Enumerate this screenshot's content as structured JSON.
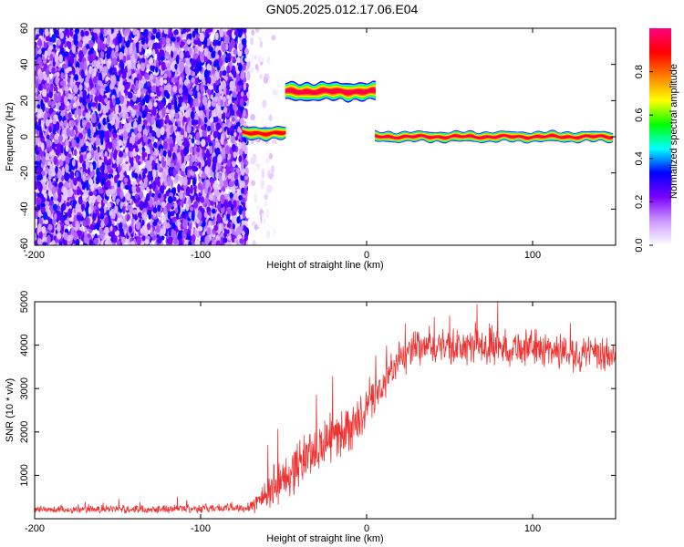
{
  "figure": {
    "title": "GN05.2025.012.17.06.E04"
  },
  "chart_data": [
    {
      "type": "heatmap",
      "xlabel": "Height of straight line (km)",
      "ylabel": "Frequency (Hz)",
      "xlim": [
        -200,
        150
      ],
      "ylim": [
        -60,
        60
      ],
      "xticks": [
        -200,
        -100,
        0,
        100
      ],
      "yticks": [
        -60,
        -40,
        -20,
        0,
        20,
        40,
        60
      ],
      "colorbar": {
        "label": "Normalized spectral amplitude",
        "range": [
          0.0,
          1.0
        ],
        "ticks": [
          0.0,
          0.2,
          0.4,
          0.6,
          0.8
        ],
        "colors": [
          "#ffffff",
          "#cc99ff",
          "#7b00ff",
          "#0000ff",
          "#00ffff",
          "#00ff00",
          "#ffff00",
          "#ff8000",
          "#ff0000",
          "#ff0080"
        ]
      },
      "features": [
        {
          "kind": "noise",
          "x": [
            -200,
            -72
          ],
          "y": [
            -60,
            60
          ],
          "amplitude": [
            0.05,
            0.35
          ]
        },
        {
          "kind": "noise",
          "x": [
            -72,
            -55
          ],
          "y": [
            -60,
            60
          ],
          "amplitude": [
            0.0,
            0.08
          ]
        },
        {
          "kind": "band",
          "x": [
            -75,
            -48
          ],
          "y_center": 2,
          "width": 5,
          "peak": 0.9
        },
        {
          "kind": "band",
          "x": [
            -49,
            6
          ],
          "y_center": 25,
          "width": 7,
          "peak": 0.95
        },
        {
          "kind": "band",
          "x": [
            5,
            150
          ],
          "y_center": 0,
          "width": 4,
          "peak": 0.95
        }
      ]
    },
    {
      "type": "line",
      "xlabel": "Height of straight line (km)",
      "ylabel": "SNR (10 * v/v)",
      "xlim": [
        -200,
        150
      ],
      "ylim": [
        0,
        5000
      ],
      "xticks": [
        -200,
        -100,
        0,
        100
      ],
      "yticks": [
        1000,
        2000,
        3000,
        4000,
        5000
      ],
      "color": "#ee3333",
      "series": [
        {
          "x": [
            -200,
            -150,
            -100,
            -75,
            -70,
            -65,
            -60,
            -55,
            -50,
            -45,
            -40,
            -35,
            -30,
            -25,
            -20,
            -15,
            -10,
            -5,
            0,
            5,
            10,
            15,
            20,
            25,
            30,
            40,
            50,
            60,
            70,
            80,
            90,
            100,
            110,
            120,
            130,
            140,
            150
          ],
          "values": [
            200,
            220,
            240,
            250,
            300,
            420,
            600,
            750,
            900,
            1100,
            1300,
            1500,
            1600,
            1750,
            1900,
            2000,
            2100,
            2250,
            2500,
            2800,
            3100,
            3400,
            3650,
            3800,
            3900,
            3950,
            3950,
            3950,
            3950,
            3950,
            3950,
            3950,
            3900,
            3850,
            3800,
            3750,
            3750
          ],
          "spread": [
            100,
            110,
            120,
            120,
            180,
            350,
            500,
            600,
            600,
            650,
            700,
            700,
            700,
            650,
            650,
            650,
            650,
            600,
            550,
            550,
            500,
            450,
            500,
            500,
            500,
            500,
            500,
            500,
            500,
            500,
            500,
            500,
            500,
            500,
            500,
            500,
            500
          ]
        }
      ]
    }
  ]
}
